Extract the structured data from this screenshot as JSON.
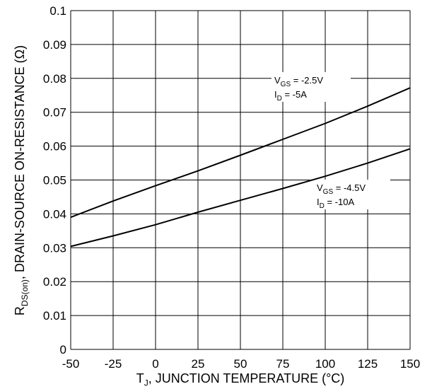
{
  "chart_data": {
    "type": "line",
    "x_ticks": [
      -50,
      -25,
      0,
      25,
      50,
      75,
      100,
      125,
      150
    ],
    "y_ticks": [
      0,
      0.01,
      0.02,
      0.03,
      0.04,
      0.05,
      0.06,
      0.07,
      0.08,
      0.09,
      0.1
    ],
    "x_tick_labels": [
      "-50",
      "-25",
      "0",
      "25",
      "50",
      "75",
      "100",
      "125",
      "150"
    ],
    "y_tick_labels": [
      "0",
      "0.01",
      "0.02",
      "0.03",
      "0.04",
      "0.05",
      "0.06",
      "0.07",
      "0.08",
      "0.09",
      "0.1"
    ],
    "xlim": [
      -50,
      150
    ],
    "ylim": [
      0,
      0.1
    ],
    "grid": true,
    "xlabel": {
      "pre": "T",
      "sub": "J",
      "post": ", JUNCTION TEMPERATURE (°C)"
    },
    "ylabel": {
      "pre": "R",
      "sub": "DS(on)",
      "post": ", DRAIN-SOURCE ON-RESISTANCE (Ω)"
    },
    "series": [
      {
        "color": "#000000",
        "x": [
          -50,
          -25,
          0,
          25,
          50,
          75,
          100,
          125,
          150
        ],
        "y": [
          0.039,
          0.0438,
          0.0483,
          0.0527,
          0.0573,
          0.062,
          0.0667,
          0.0718,
          0.0772
        ],
        "annotation": [
          {
            "pre": "V",
            "sub": "GS",
            "post": " = -2.5V"
          },
          {
            "pre": "I",
            "sub": "D",
            "post": " = -5A"
          }
        ]
      },
      {
        "color": "#000000",
        "x": [
          -50,
          -25,
          0,
          25,
          50,
          75,
          100,
          125,
          150
        ],
        "y": [
          0.0304,
          0.0335,
          0.0368,
          0.0405,
          0.044,
          0.0475,
          0.0511,
          0.055,
          0.0592
        ],
        "annotation": [
          {
            "pre": "V",
            "sub": "GS",
            "post": " = -4.5V"
          },
          {
            "pre": "I",
            "sub": "D",
            "post": " = -10A"
          }
        ]
      }
    ]
  }
}
